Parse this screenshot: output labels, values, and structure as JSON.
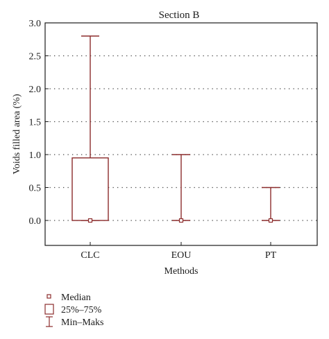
{
  "chart_data": {
    "type": "box",
    "title": "Section B",
    "xlabel": "Methods",
    "ylabel": "Voids filled area (%)",
    "ylim": [
      -0.4,
      3.0
    ],
    "yticks": [
      "0.0",
      "0.5",
      "1.0",
      "1.5",
      "2.0",
      "2.5",
      "3.0"
    ],
    "ytick_values": [
      0.0,
      0.5,
      1.0,
      1.5,
      2.0,
      2.5,
      3.0
    ],
    "grid": "horizontal dotted",
    "categories": [
      "CLC",
      "EOU",
      "PT"
    ],
    "boxes": [
      {
        "category": "CLC",
        "min": 0.0,
        "q1": 0.0,
        "median": 0.0,
        "q3": 0.95,
        "max": 2.8
      },
      {
        "category": "EOU",
        "min": 0.0,
        "q1": 0.0,
        "median": 0.0,
        "q3": 0.0,
        "max": 1.0
      },
      {
        "category": "PT",
        "min": 0.0,
        "q1": 0.0,
        "median": 0.0,
        "q3": 0.0,
        "max": 0.5
      }
    ],
    "legend_position": "bottom-left",
    "legend": [
      {
        "symbol": "square-marker",
        "label": "Median"
      },
      {
        "symbol": "box",
        "label": "25%–75%"
      },
      {
        "symbol": "whisker",
        "label": "Min–Maks"
      }
    ],
    "colors": {
      "series": "#8b2c2c",
      "axis": "#1a1a1a",
      "grid": "#444444"
    }
  }
}
